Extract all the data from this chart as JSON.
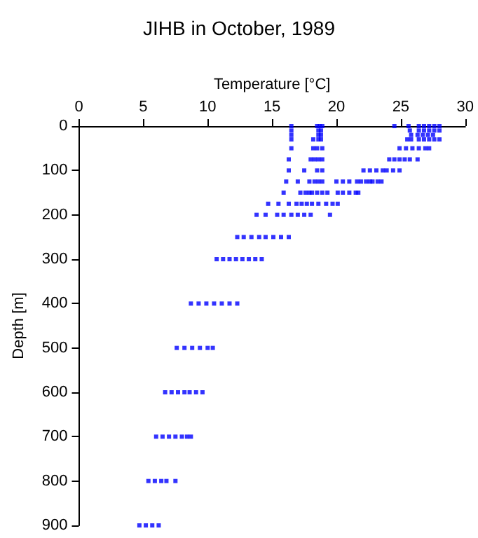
{
  "chart_data": {
    "type": "scatter",
    "title": "JIHB in October, 1989",
    "xlabel": "Temperature [°C]",
    "ylabel": "Depth [m]",
    "xlim": [
      0,
      30
    ],
    "xticks": [
      0,
      5,
      10,
      15,
      20,
      25,
      30
    ],
    "ylim": [
      900,
      0
    ],
    "yticks": [
      0,
      100,
      200,
      300,
      400,
      500,
      600,
      700,
      800,
      900
    ],
    "grid": false,
    "marker": "square",
    "series": [
      {
        "color": "#0000ff",
        "x": [
          16.5,
          18.5,
          18.7,
          18.9,
          24.5,
          25.6,
          26.4,
          26.8,
          27.2,
          27.6,
          28.0,
          16.5,
          18.6,
          18.8,
          25.7,
          26.4,
          26.8,
          27.2,
          27.6,
          28.0,
          16.5,
          18.6,
          18.8,
          25.8,
          26.3,
          26.7,
          27.1,
          27.5,
          16.5,
          18.2,
          18.6,
          18.8,
          25.5,
          25.8,
          26.4,
          26.8,
          27.2,
          27.6,
          28.0,
          16.5,
          18.2,
          18.5,
          18.9,
          24.9,
          25.4,
          25.9,
          26.4,
          26.9,
          27.2,
          16.3,
          18.0,
          18.3,
          18.6,
          18.9,
          24.1,
          24.5,
          24.9,
          25.3,
          25.7,
          26.3,
          16.3,
          17.5,
          18.5,
          18.9,
          22.1,
          22.6,
          23.1,
          23.6,
          23.9,
          24.4,
          24.9,
          16.1,
          17.0,
          17.9,
          18.3,
          18.6,
          18.9,
          20.0,
          20.5,
          21.0,
          21.6,
          21.9,
          22.3,
          22.6,
          22.8,
          23.2,
          23.5,
          15.9,
          17.2,
          17.6,
          17.9,
          18.1,
          18.5,
          18.9,
          19.3,
          20.1,
          20.5,
          21.0,
          21.5,
          21.7,
          14.7,
          15.5,
          16.3,
          16.9,
          17.3,
          17.7,
          18.1,
          18.6,
          19.2,
          19.7,
          20.1,
          13.8,
          14.5,
          15.4,
          15.9,
          16.5,
          17.0,
          17.5,
          18.0,
          19.5,
          12.3,
          12.8,
          13.4,
          14.0,
          14.5,
          15.1,
          15.7,
          16.3,
          10.7,
          11.2,
          11.7,
          12.2,
          12.7,
          13.2,
          13.7,
          14.2,
          8.7,
          9.3,
          9.9,
          10.5,
          11.1,
          11.7,
          12.3,
          7.6,
          8.2,
          8.8,
          9.4,
          10.0,
          10.4,
          6.7,
          7.2,
          7.7,
          8.2,
          8.6,
          9.1,
          9.6,
          6.0,
          6.5,
          7.0,
          7.5,
          8.0,
          8.4,
          8.7,
          5.4,
          5.9,
          6.4,
          6.8,
          7.5,
          4.7,
          5.2,
          5.7,
          6.2
        ],
        "values": [
          0,
          0,
          0,
          0,
          0,
          0,
          0,
          0,
          0,
          0,
          0,
          10,
          10,
          10,
          10,
          10,
          10,
          10,
          10,
          10,
          20,
          20,
          20,
          20,
          20,
          20,
          20,
          20,
          30,
          30,
          30,
          30,
          30,
          30,
          30,
          30,
          30,
          30,
          30,
          50,
          50,
          50,
          50,
          50,
          50,
          50,
          50,
          50,
          50,
          75,
          75,
          75,
          75,
          75,
          75,
          75,
          75,
          75,
          75,
          75,
          100,
          100,
          100,
          100,
          100,
          100,
          100,
          100,
          100,
          100,
          100,
          125,
          125,
          125,
          125,
          125,
          125,
          125,
          125,
          125,
          125,
          125,
          125,
          125,
          125,
          125,
          125,
          150,
          150,
          150,
          150,
          150,
          150,
          150,
          150,
          150,
          150,
          150,
          150,
          150,
          175,
          175,
          175,
          175,
          175,
          175,
          175,
          175,
          175,
          175,
          175,
          200,
          200,
          200,
          200,
          200,
          200,
          200,
          200,
          200,
          250,
          250,
          250,
          250,
          250,
          250,
          250,
          250,
          300,
          300,
          300,
          300,
          300,
          300,
          300,
          300,
          400,
          400,
          400,
          400,
          400,
          400,
          400,
          500,
          500,
          500,
          500,
          500,
          500,
          600,
          600,
          600,
          600,
          600,
          600,
          600,
          700,
          700,
          700,
          700,
          700,
          700,
          700,
          800,
          800,
          800,
          800,
          800,
          900,
          900,
          900,
          900
        ]
      }
    ]
  }
}
